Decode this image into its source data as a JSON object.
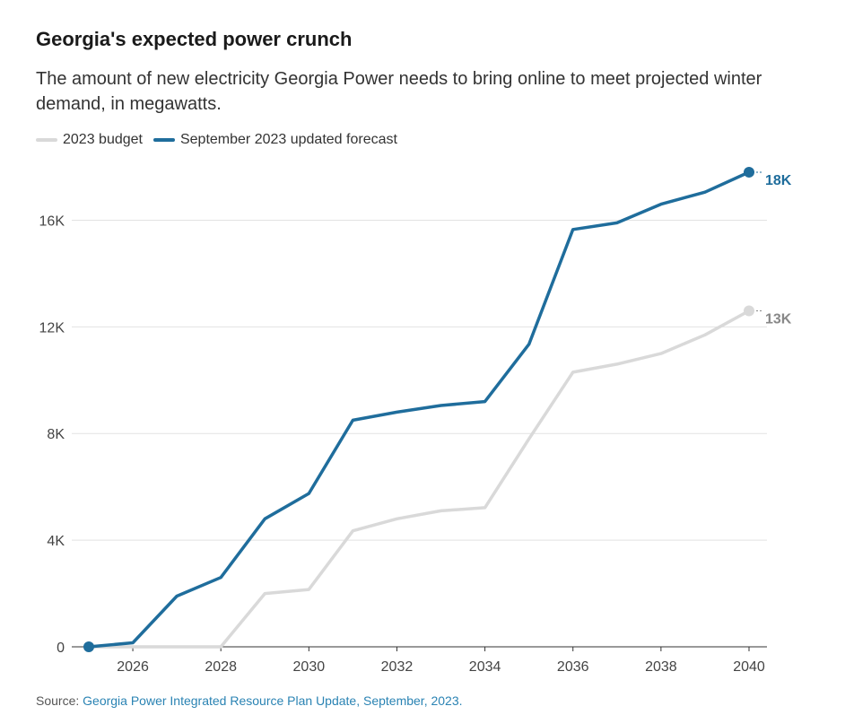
{
  "chart_data": {
    "type": "line",
    "title": "Georgia's expected power crunch",
    "subtitle": "The amount of new electricity Georgia Power needs to bring online to meet projected winter demand, in megawatts.",
    "xlabel": "",
    "ylabel": "",
    "x": [
      2025,
      2026,
      2027,
      2028,
      2029,
      2030,
      2031,
      2032,
      2033,
      2034,
      2035,
      2036,
      2037,
      2038,
      2039,
      2040
    ],
    "xticks": [
      2026,
      2028,
      2030,
      2032,
      2034,
      2036,
      2038,
      2040
    ],
    "xlim": [
      2025,
      2040
    ],
    "yticks": [
      0,
      4000,
      8000,
      12000,
      16000
    ],
    "ytick_labels": [
      "0",
      "4K",
      "8K",
      "12K",
      "16K"
    ],
    "ylim": [
      0,
      18000
    ],
    "grid": true,
    "legend_position": "top-left",
    "series": [
      {
        "name": "2023 budget",
        "color": "#d9d9d9",
        "end_label_color": "#888888",
        "values": [
          0,
          0,
          0,
          0,
          2000,
          2150,
          4350,
          4800,
          5100,
          5220,
          7800,
          10300,
          10600,
          11000,
          11700,
          12600
        ],
        "end_label": "13K"
      },
      {
        "name": "September 2023 updated forecast",
        "color": "#1f6d9c",
        "end_label_color": "#1f6d9c",
        "values": [
          0,
          150,
          1900,
          2600,
          4800,
          5750,
          8500,
          8800,
          9050,
          9200,
          11350,
          15650,
          15900,
          16600,
          17050,
          17800
        ],
        "end_label": "18K"
      }
    ]
  },
  "source": {
    "prefix": "Source: ",
    "link_text": "Georgia Power Integrated Resource Plan Update, September, 2023."
  }
}
